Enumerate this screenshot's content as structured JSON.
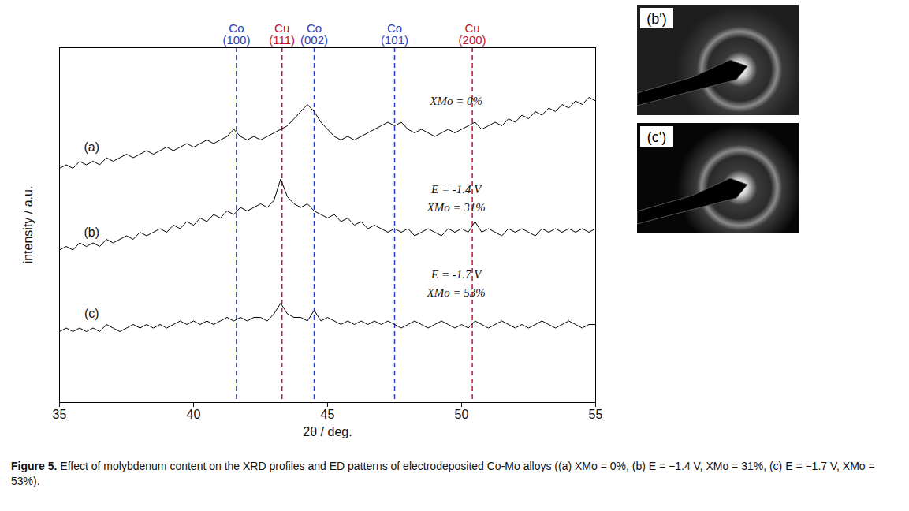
{
  "chart_data": {
    "type": "line",
    "xlabel": "2θ / deg.",
    "ylabel": "intensity / a.u.",
    "xlim": [
      35,
      55
    ],
    "xticks": [
      35,
      40,
      45,
      50,
      55
    ],
    "ylim": [
      0,
      100
    ],
    "tick_labels": "x",
    "grid": false,
    "x": [
      35,
      35.25,
      35.5,
      35.75,
      36,
      36.25,
      36.5,
      36.75,
      37,
      37.25,
      37.5,
      37.75,
      38,
      38.25,
      38.5,
      38.75,
      39,
      39.25,
      39.5,
      39.75,
      40,
      40.25,
      40.5,
      40.75,
      41,
      41.25,
      41.5,
      41.75,
      42,
      42.25,
      42.5,
      42.75,
      43,
      43.25,
      43.5,
      43.75,
      44,
      44.25,
      44.5,
      44.75,
      45,
      45.25,
      45.5,
      45.75,
      46,
      46.25,
      46.5,
      46.75,
      47,
      47.25,
      47.5,
      47.75,
      48,
      48.25,
      48.5,
      48.75,
      49,
      49.25,
      49.5,
      49.75,
      50,
      50.25,
      50.5,
      50.75,
      51,
      51.25,
      51.5,
      51.75,
      52,
      52.25,
      52.5,
      52.75,
      53,
      53.25,
      53.5,
      53.75,
      54,
      54.25,
      54.5,
      54.75,
      55
    ],
    "series": [
      {
        "name": "(a)",
        "color": "#000000",
        "label_x": 36.2,
        "label_y": 72,
        "values": [
          66,
          67,
          66,
          68,
          67,
          68,
          67,
          69,
          68,
          69,
          70,
          69,
          70,
          71,
          70,
          71,
          72,
          71,
          72,
          73,
          72,
          73,
          74,
          73,
          74,
          75,
          77,
          75,
          74,
          75,
          74,
          75,
          76,
          77,
          78,
          80,
          82,
          84,
          82,
          79,
          77,
          75,
          74,
          75,
          74,
          75,
          76,
          77,
          78,
          79,
          78,
          79,
          77,
          76,
          77,
          76,
          75,
          76,
          77,
          76,
          77,
          78,
          79,
          77,
          78,
          79,
          78,
          80,
          79,
          81,
          80,
          82,
          81,
          83,
          82,
          84,
          83,
          85,
          84,
          86,
          85
        ]
      },
      {
        "name": "(b)",
        "color": "#000000",
        "label_x": 36.2,
        "label_y": 48,
        "values": [
          43,
          44,
          43,
          45,
          44,
          45,
          44,
          46,
          45,
          46,
          47,
          46,
          48,
          47,
          48,
          49,
          48,
          50,
          49,
          51,
          50,
          52,
          51,
          53,
          52,
          54,
          53,
          55,
          54,
          55,
          56,
          55,
          57,
          63,
          58,
          56,
          55,
          56,
          54,
          53,
          52,
          53,
          51,
          52,
          50,
          51,
          49,
          50,
          49,
          48,
          49,
          48,
          49,
          47,
          48,
          49,
          48,
          47,
          49,
          48,
          49,
          48,
          51,
          48,
          49,
          48,
          47,
          49,
          48,
          49,
          48,
          47,
          49,
          48,
          49,
          48,
          49,
          48,
          49,
          48,
          49
        ]
      },
      {
        "name": "(c)",
        "color": "#000000",
        "label_x": 36.2,
        "label_y": 25,
        "values": [
          20,
          21,
          20,
          21,
          20,
          21,
          20,
          22,
          21,
          20,
          21,
          22,
          21,
          22,
          21,
          22,
          21,
          22,
          23,
          22,
          23,
          22,
          23,
          22,
          23,
          24,
          23,
          24,
          23,
          24,
          24,
          23,
          25,
          28,
          25,
          24,
          24,
          23,
          26,
          23,
          24,
          23,
          22,
          23,
          22,
          23,
          22,
          23,
          22,
          23,
          22,
          21,
          22,
          23,
          22,
          21,
          22,
          23,
          22,
          21,
          22,
          21,
          23,
          22,
          21,
          22,
          23,
          22,
          21,
          22,
          21,
          22,
          23,
          22,
          21,
          22,
          23,
          22,
          21,
          22,
          22
        ]
      }
    ],
    "reference_lines": [
      {
        "value": 41.6,
        "element": "Co",
        "plane": "(100)",
        "color": "#2b3fc4"
      },
      {
        "value": 43.3,
        "element": "Cu",
        "plane": "(111)",
        "color": "#c8102e"
      },
      {
        "value": 44.5,
        "element": "Co",
        "plane": "(002)",
        "color": "#2b3fc4"
      },
      {
        "value": 47.5,
        "element": "Co",
        "plane": "(101)",
        "color": "#2b3fc4"
      },
      {
        "value": 50.4,
        "element": "Cu",
        "plane": "(200)",
        "color": "#c8102e"
      }
    ],
    "annotations": [
      {
        "text": "XMo = 0%",
        "x": 49.8,
        "y": 85
      },
      {
        "text": "E = -1.4 V",
        "x": 49.8,
        "y": 60
      },
      {
        "text": "XMo = 31%",
        "x": 49.8,
        "y": 55
      },
      {
        "text": "E = -1.7 V",
        "x": 49.8,
        "y": 36
      },
      {
        "text": "XMo = 53%",
        "x": 49.8,
        "y": 31
      }
    ]
  },
  "images": [
    {
      "label": "(b')"
    },
    {
      "label": "(c')"
    }
  ],
  "caption": {
    "label": "Figure 5.",
    "text": "Effect of molybdenum content on the XRD profiles and ED patterns of electrodeposited Co-Mo alloys ((a) XMo = 0%, (b) E = −1.4 V, XMo = 31%, (c) E = −1.7 V, XMo = 53%)."
  }
}
